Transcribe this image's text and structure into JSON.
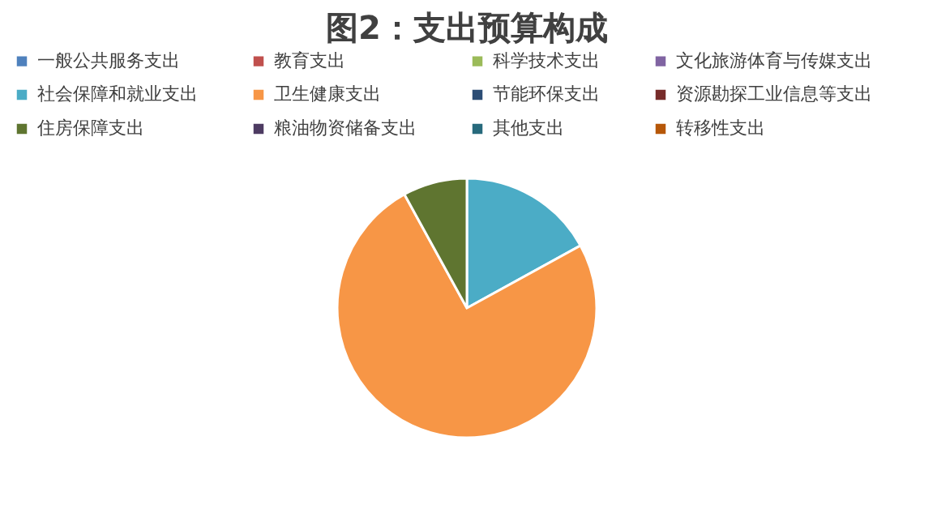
{
  "chart_data": {
    "type": "pie",
    "title": "图2：支出预算构成",
    "categories": [
      "一般公共服务支出",
      "教育支出",
      "科学技术支出",
      "文化旅游体育与传媒支出",
      "社会保障和就业支出",
      "卫生健康支出",
      "节能环保支出",
      "资源勘探工业信息等支出",
      "住房保障支出",
      "粮油物资储备支出",
      "其他支出",
      "转移性支出"
    ],
    "values": [
      0,
      0,
      0,
      0,
      17,
      75,
      0,
      0,
      8,
      0,
      0,
      0
    ],
    "colors": [
      "#4f81bd",
      "#c0504d",
      "#9bbb59",
      "#8064a2",
      "#4bacc6",
      "#f79646",
      "#2c4d75",
      "#772c2a",
      "#5f7530",
      "#4d3b62",
      "#276a7c",
      "#b65708"
    ],
    "legend": "top"
  }
}
